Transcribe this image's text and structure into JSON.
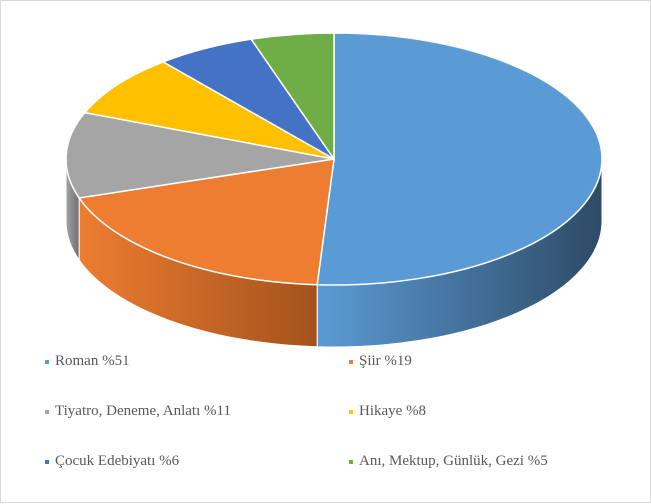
{
  "chart_data": {
    "type": "pie",
    "style": "3d",
    "title": "",
    "slices": [
      {
        "label": "Roman %51",
        "name": "Roman",
        "value": 51,
        "color": "#5b9bd5",
        "side_color": "#2e4a66"
      },
      {
        "label": "Şiir %19",
        "name": "Şiir",
        "value": 19,
        "color": "#ed7d31",
        "side_color": "#a3521c"
      },
      {
        "label": "Tiyatro, Deneme, Anlatı %11",
        "name": "Tiyatro, Deneme, Anlatı",
        "value": 11,
        "color": "#a5a5a5",
        "side_color": "#6e6e6e"
      },
      {
        "label": "Hikaye %8",
        "name": "Hikaye",
        "value": 8,
        "color": "#ffc000",
        "side_color": "#b38600"
      },
      {
        "label": "Çocuk Edebiyatı %6",
        "name": "Çocuk Edebiyatı",
        "value": 6,
        "color": "#4472c4",
        "side_color": "#2a4679"
      },
      {
        "label": "Anı, Mektup, Günlük, Gezi %5",
        "name": "Anı, Mektup, Günlük, Gezi",
        "value": 5,
        "color": "#70ad47",
        "side_color": "#4a7430"
      }
    ],
    "legend_position": "bottom"
  }
}
